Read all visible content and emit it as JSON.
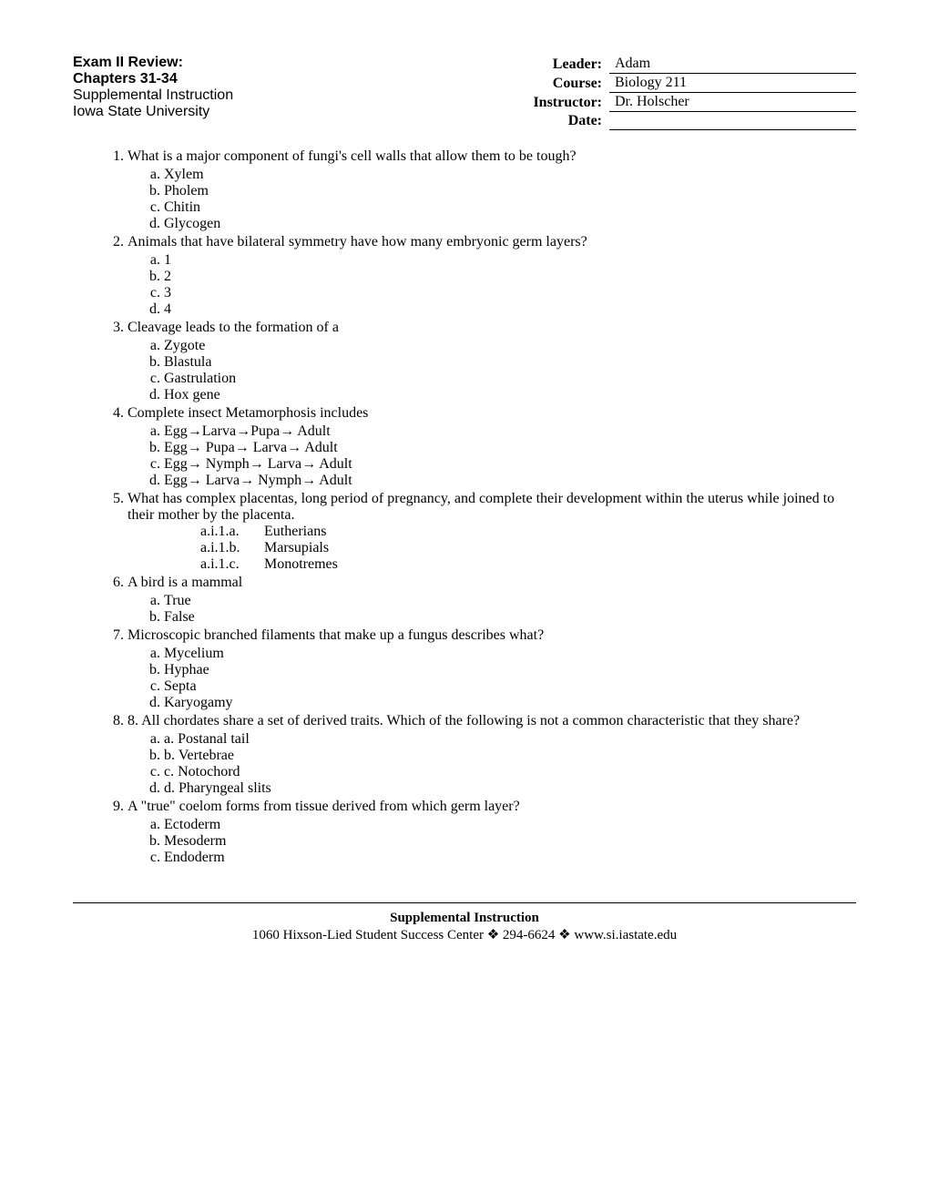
{
  "header": {
    "left": {
      "line1": "Exam II Review:",
      "line2": "Chapters 31-34",
      "line3": "Supplemental Instruction",
      "line4": "Iowa State University"
    },
    "right": {
      "leader_label": "Leader:",
      "leader_value": "Adam",
      "course_label": "Course:",
      "course_value": "Biology 211",
      "instructor_label": "Instructor:",
      "instructor_value": "Dr. Holscher",
      "date_label": "Date:",
      "date_value": ""
    }
  },
  "questions": [
    {
      "text": "What is a major component of fungi's cell walls that allow them to be tough?",
      "options": [
        "Xylem",
        "Pholem",
        "Chitin",
        "Glycogen"
      ]
    },
    {
      "text": "Animals that have bilateral symmetry have how many embryonic germ layers?",
      "options": [
        "1",
        "2",
        "3",
        "4"
      ]
    },
    {
      "text": "Cleavage leads to the formation of a",
      "options": [
        "Zygote",
        "Blastula",
        "Gastrulation",
        "Hox gene"
      ]
    },
    {
      "text": "Complete insect Metamorphosis includes",
      "options": [
        "Egg→Larva→Pupa→ Adult",
        "Egg→ Pupa→ Larva→ Adult",
        "Egg→ Nymph→ Larva→ Adult",
        "Egg→ Larva→ Nymph→ Adult"
      ]
    },
    {
      "text": "What has complex placentas, long period of pregnancy, and complete their development within the uterus while joined to their mother by the placenta.",
      "custom_options": [
        {
          "marker": "a.i.1.a.",
          "text": "Eutherians"
        },
        {
          "marker": "a.i.1.b.",
          "text": "Marsupials"
        },
        {
          "marker": "a.i.1.c.",
          "text": "Monotremes"
        }
      ]
    },
    {
      "text": "A bird is a mammal",
      "options": [
        "True",
        "False"
      ]
    },
    {
      "text": "Microscopic branched filaments that make up a fungus describes what?",
      "options": [
        "Mycelium",
        "Hyphae",
        "Septa",
        "Karyogamy"
      ]
    },
    {
      "text": "8.   All chordates share a set of derived traits. Which of the following is not a common characteristic that they share?",
      "options": [
        "a.   Postanal tail",
        "b.   Vertebrae",
        "c.   Notochord",
        "d.   Pharyngeal slits"
      ]
    },
    {
      "text": "A \"true\" coelom forms from tissue derived from which germ layer?",
      "options": [
        "Ectoderm",
        "Mesoderm",
        "Endoderm"
      ]
    }
  ],
  "footer": {
    "title": "Supplemental Instruction",
    "line": "1060 Hixson-Lied Student Success Center    ❖    294-6624    ❖    www.si.iastate.edu"
  }
}
